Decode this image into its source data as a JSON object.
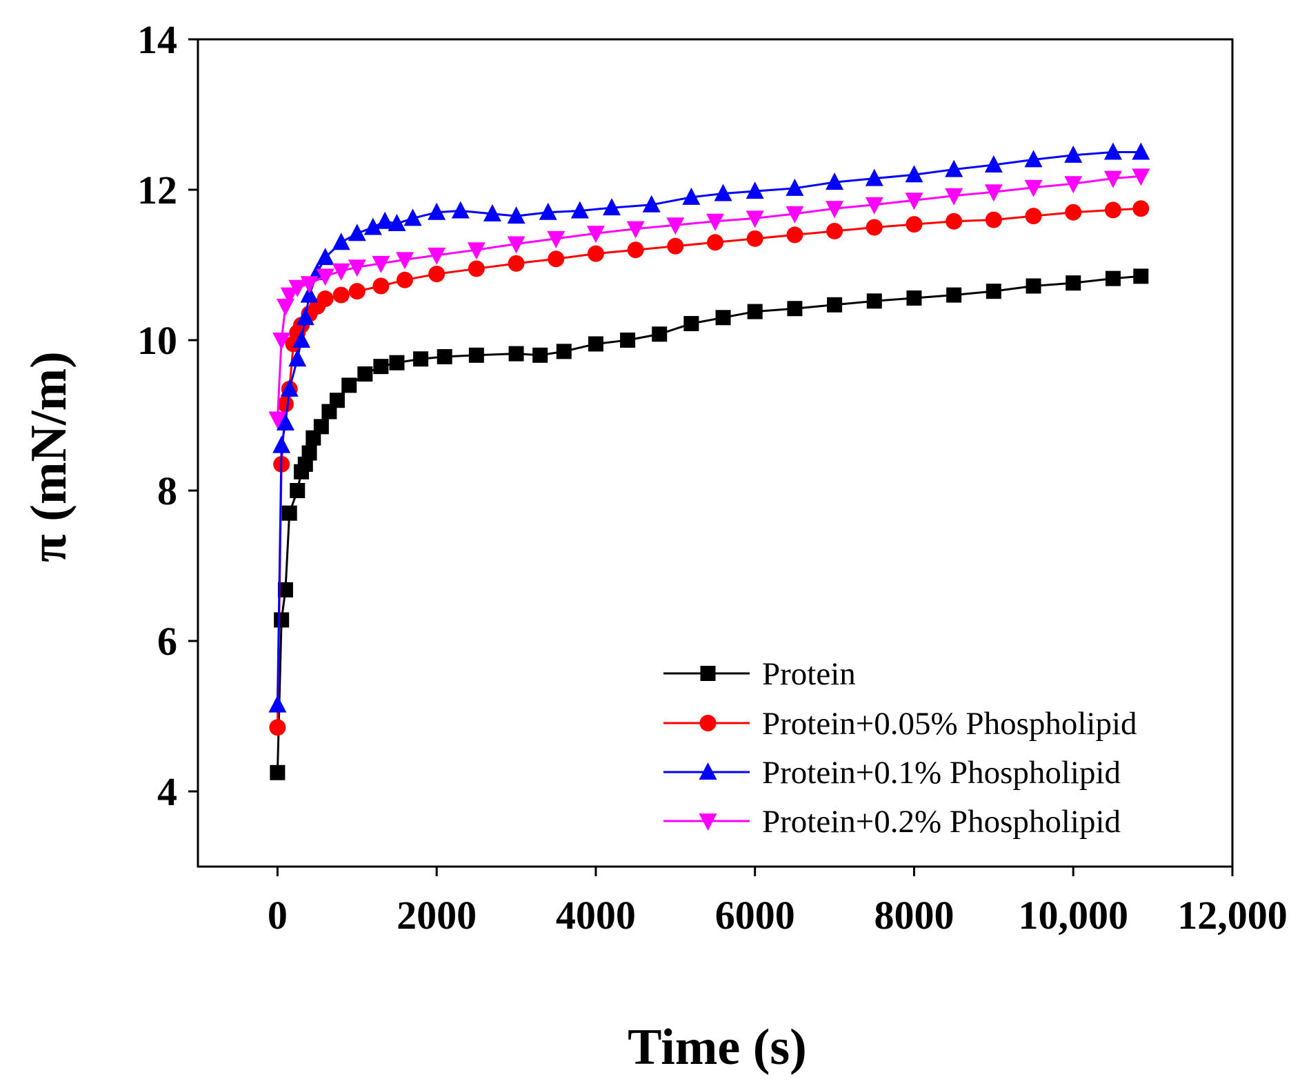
{
  "chart_data": {
    "type": "line",
    "xlabel": "Time (s)",
    "ylabel": "π (mN/m)",
    "xlim": [
      -1000,
      12000
    ],
    "ylim": [
      3,
      14
    ],
    "x_ticks": [
      {
        "value": 0,
        "label": "0"
      },
      {
        "value": 2000,
        "label": "2000"
      },
      {
        "value": 4000,
        "label": "4000"
      },
      {
        "value": 6000,
        "label": "6000"
      },
      {
        "value": 8000,
        "label": "8000"
      },
      {
        "value": 10000,
        "label": "10,000"
      },
      {
        "value": 12000,
        "label": "12,000"
      }
    ],
    "y_ticks": [
      {
        "value": 4,
        "label": "4"
      },
      {
        "value": 6,
        "label": "6"
      },
      {
        "value": 8,
        "label": "8"
      },
      {
        "value": 10,
        "label": "10"
      },
      {
        "value": 12,
        "label": "12"
      },
      {
        "value": 14,
        "label": "14"
      }
    ],
    "legend_position": "bottom-right",
    "series": [
      {
        "name": "Protein",
        "color": "#000000",
        "marker": "square",
        "points": [
          [
            0,
            4.25
          ],
          [
            50,
            6.28
          ],
          [
            100,
            6.68
          ],
          [
            150,
            7.7
          ],
          [
            250,
            8.0
          ],
          [
            300,
            8.25
          ],
          [
            350,
            8.35
          ],
          [
            400,
            8.5
          ],
          [
            450,
            8.7
          ],
          [
            550,
            8.85
          ],
          [
            650,
            9.05
          ],
          [
            750,
            9.2
          ],
          [
            900,
            9.4
          ],
          [
            1100,
            9.55
          ],
          [
            1300,
            9.65
          ],
          [
            1500,
            9.7
          ],
          [
            1800,
            9.75
          ],
          [
            2100,
            9.78
          ],
          [
            2500,
            9.8
          ],
          [
            3000,
            9.82
          ],
          [
            3300,
            9.8
          ],
          [
            3600,
            9.85
          ],
          [
            4000,
            9.95
          ],
          [
            4400,
            10.0
          ],
          [
            4800,
            10.08
          ],
          [
            5200,
            10.22
          ],
          [
            5600,
            10.3
          ],
          [
            6000,
            10.38
          ],
          [
            6500,
            10.42
          ],
          [
            7000,
            10.47
          ],
          [
            7500,
            10.52
          ],
          [
            8000,
            10.56
          ],
          [
            8500,
            10.6
          ],
          [
            9000,
            10.65
          ],
          [
            9500,
            10.72
          ],
          [
            10000,
            10.76
          ],
          [
            10500,
            10.82
          ],
          [
            10850,
            10.85
          ]
        ]
      },
      {
        "name": "Protein+0.05% Phospholipid",
        "color": "#ff0000",
        "marker": "circle",
        "points": [
          [
            0,
            4.85
          ],
          [
            50,
            8.35
          ],
          [
            100,
            9.15
          ],
          [
            150,
            9.35
          ],
          [
            200,
            9.95
          ],
          [
            250,
            10.1
          ],
          [
            300,
            10.2
          ],
          [
            400,
            10.35
          ],
          [
            500,
            10.45
          ],
          [
            600,
            10.55
          ],
          [
            800,
            10.6
          ],
          [
            1000,
            10.65
          ],
          [
            1300,
            10.72
          ],
          [
            1600,
            10.8
          ],
          [
            2000,
            10.88
          ],
          [
            2500,
            10.95
          ],
          [
            3000,
            11.02
          ],
          [
            3500,
            11.08
          ],
          [
            4000,
            11.15
          ],
          [
            4500,
            11.2
          ],
          [
            5000,
            11.25
          ],
          [
            5500,
            11.3
          ],
          [
            6000,
            11.35
          ],
          [
            6500,
            11.4
          ],
          [
            7000,
            11.45
          ],
          [
            7500,
            11.5
          ],
          [
            8000,
            11.54
          ],
          [
            8500,
            11.58
          ],
          [
            9000,
            11.6
          ],
          [
            9500,
            11.65
          ],
          [
            10000,
            11.7
          ],
          [
            10500,
            11.73
          ],
          [
            10850,
            11.75
          ]
        ]
      },
      {
        "name": "Protein+0.1% Phospholipid",
        "color": "#0000ff",
        "marker": "triangle-up",
        "points": [
          [
            0,
            5.15
          ],
          [
            50,
            8.6
          ],
          [
            100,
            8.9
          ],
          [
            150,
            9.35
          ],
          [
            250,
            9.75
          ],
          [
            300,
            10.0
          ],
          [
            350,
            10.3
          ],
          [
            400,
            10.6
          ],
          [
            500,
            10.9
          ],
          [
            600,
            11.1
          ],
          [
            800,
            11.3
          ],
          [
            1000,
            11.42
          ],
          [
            1200,
            11.5
          ],
          [
            1350,
            11.58
          ],
          [
            1500,
            11.55
          ],
          [
            1700,
            11.62
          ],
          [
            2000,
            11.7
          ],
          [
            2300,
            11.72
          ],
          [
            2700,
            11.68
          ],
          [
            3000,
            11.65
          ],
          [
            3400,
            11.7
          ],
          [
            3800,
            11.72
          ],
          [
            4200,
            11.76
          ],
          [
            4700,
            11.8
          ],
          [
            5200,
            11.9
          ],
          [
            5600,
            11.95
          ],
          [
            6000,
            11.98
          ],
          [
            6500,
            12.02
          ],
          [
            7000,
            12.1
          ],
          [
            7500,
            12.15
          ],
          [
            8000,
            12.2
          ],
          [
            8500,
            12.27
          ],
          [
            9000,
            12.33
          ],
          [
            9500,
            12.4
          ],
          [
            10000,
            12.46
          ],
          [
            10500,
            12.5
          ],
          [
            10850,
            12.5
          ]
        ]
      },
      {
        "name": "Protein+0.2% Phospholipid",
        "color": "#ff00ff",
        "marker": "triangle-down",
        "points": [
          [
            0,
            8.95
          ],
          [
            50,
            10.0
          ],
          [
            100,
            10.45
          ],
          [
            150,
            10.6
          ],
          [
            250,
            10.7
          ],
          [
            400,
            10.75
          ],
          [
            600,
            10.85
          ],
          [
            800,
            10.92
          ],
          [
            1000,
            10.97
          ],
          [
            1300,
            11.02
          ],
          [
            1600,
            11.07
          ],
          [
            2000,
            11.13
          ],
          [
            2500,
            11.2
          ],
          [
            3000,
            11.28
          ],
          [
            3500,
            11.35
          ],
          [
            4000,
            11.42
          ],
          [
            4500,
            11.48
          ],
          [
            5000,
            11.53
          ],
          [
            5500,
            11.58
          ],
          [
            6000,
            11.62
          ],
          [
            6500,
            11.68
          ],
          [
            7000,
            11.75
          ],
          [
            7500,
            11.8
          ],
          [
            8000,
            11.86
          ],
          [
            8500,
            11.92
          ],
          [
            9000,
            11.97
          ],
          [
            9500,
            12.03
          ],
          [
            10000,
            12.08
          ],
          [
            10500,
            12.15
          ],
          [
            10850,
            12.18
          ]
        ]
      }
    ]
  }
}
